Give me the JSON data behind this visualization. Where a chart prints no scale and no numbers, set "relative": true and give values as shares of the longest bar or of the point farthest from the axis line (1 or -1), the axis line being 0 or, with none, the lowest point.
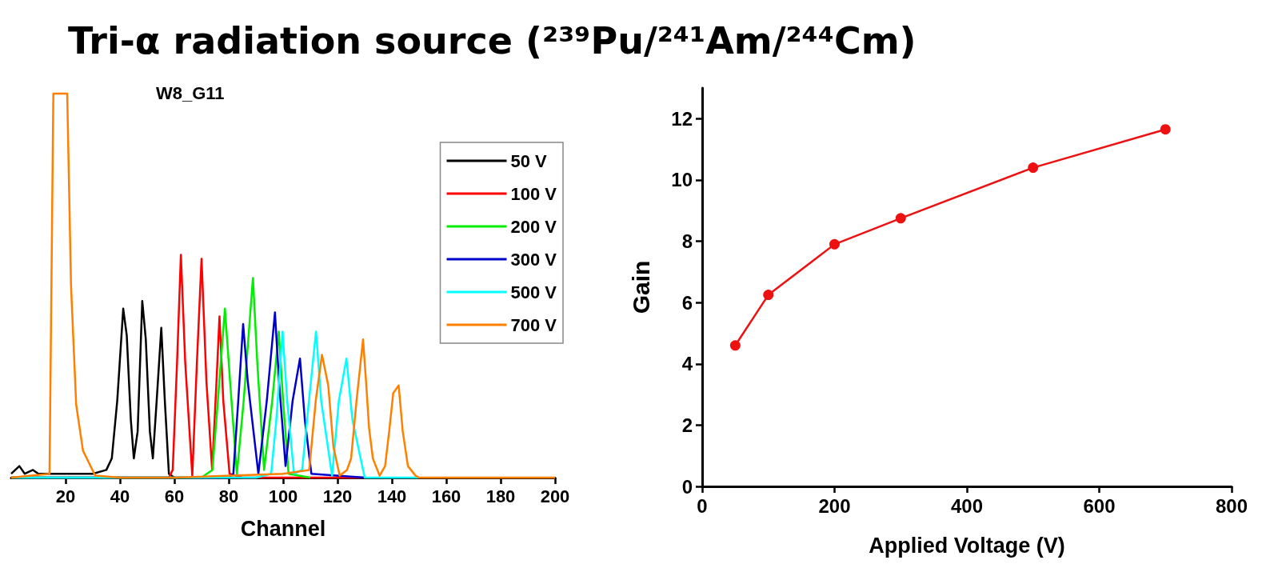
{
  "chart_data": [
    {
      "type": "line",
      "title": "Tri-α radiation source (²³⁹Pu/²⁴¹Am/²⁴⁴Cm)",
      "subtitle": "W8_G11",
      "xlabel": "Channel",
      "relative": true,
      "xlim": [
        0,
        200
      ],
      "xticks": [
        20,
        40,
        60,
        80,
        100,
        120,
        140,
        160,
        180,
        200
      ],
      "legend": "top right",
      "marker": "none",
      "series": [
        {
          "name": "50 V",
          "color": "#000000",
          "x": [
            0,
            3,
            5,
            8,
            10,
            15,
            20,
            25,
            30,
            35,
            37,
            39,
            41.2,
            42.5,
            44,
            45.1,
            46.5,
            48.2,
            49.5,
            51,
            52.1,
            53.5,
            55.2,
            56.5,
            58,
            60
          ],
          "values": [
            0.01,
            0.03,
            0.01,
            0.02,
            0.01,
            0.01,
            0.01,
            0.01,
            0.01,
            0.02,
            0.05,
            0.2,
            0.44,
            0.37,
            0.15,
            0.05,
            0.12,
            0.46,
            0.36,
            0.12,
            0.05,
            0.2,
            0.39,
            0.2,
            0.01,
            0
          ]
        },
        {
          "name": "100 V",
          "color": "#ff0000",
          "x": [
            0,
            58,
            59.4,
            61,
            62.4,
            64,
            66.6,
            68.3,
            70,
            71.8,
            73.9,
            75.5,
            76.6,
            78,
            80.3,
            85,
            130
          ],
          "values": [
            0,
            0,
            0.02,
            0.3,
            0.58,
            0.3,
            0.005,
            0.3,
            0.57,
            0.25,
            0.02,
            0.25,
            0.42,
            0.2,
            0.01,
            0,
            0
          ]
        },
        {
          "name": "200 V",
          "color": "#00ee00",
          "x": [
            0,
            70,
            74,
            76,
            78.6,
            80.5,
            83,
            85.5,
            88.9,
            90.5,
            93,
            96,
            98.4,
            100,
            102,
            110
          ],
          "values": [
            0,
            0,
            0.02,
            0.2,
            0.44,
            0.25,
            0.01,
            0.2,
            0.52,
            0.3,
            0.02,
            0.2,
            0.38,
            0.2,
            0.01,
            0
          ]
        },
        {
          "name": "300 V",
          "color": "#0000cc",
          "x": [
            0,
            80,
            81.7,
            83.5,
            85.3,
            87,
            90.9,
            94,
            97,
            98.5,
            100.9,
            103.5,
            106.2,
            108,
            110.4,
            130
          ],
          "values": [
            0,
            0,
            0.01,
            0.2,
            0.4,
            0.25,
            0.01,
            0.2,
            0.43,
            0.25,
            0.03,
            0.2,
            0.31,
            0.15,
            0.01,
            0
          ]
        },
        {
          "name": "500 V",
          "color": "#00ffff",
          "x": [
            0,
            90,
            95.6,
            97.5,
            99.8,
            101.5,
            104,
            107,
            109.5,
            112.1,
            114,
            118,
            120.5,
            123.3,
            125.5,
            130,
            150
          ],
          "values": [
            0,
            0,
            0.01,
            0.15,
            0.38,
            0.2,
            0.01,
            0.02,
            0.2,
            0.38,
            0.2,
            0.005,
            0.2,
            0.31,
            0.15,
            0,
            0
          ]
        },
        {
          "name": "700 V",
          "color": "#ff8000",
          "x": [
            0,
            14.1,
            15.5,
            20.6,
            22,
            23.9,
            26.4,
            27.8,
            30.9,
            40,
            60,
            100,
            109.6,
            112,
            114.3,
            116.6,
            118.5,
            120.8,
            123.5,
            125,
            127,
            129.4,
            130.5,
            131.6,
            133,
            135.5,
            137.5,
            139,
            140.5,
            142.5,
            144,
            145.9,
            148.7,
            150,
            200
          ],
          "values": [
            0,
            0.01,
            1,
            1,
            0.5,
            0.19,
            0.07,
            0.05,
            0.005,
            0,
            0,
            0.01,
            0.02,
            0.2,
            0.32,
            0.24,
            0.08,
            0.005,
            0.02,
            0.05,
            0.2,
            0.36,
            0.25,
            0.13,
            0.05,
            0.005,
            0.03,
            0.12,
            0.22,
            0.24,
            0.12,
            0.03,
            0.005,
            0,
            0
          ]
        }
      ]
    },
    {
      "type": "line",
      "xlabel": "Applied Voltage (V)",
      "ylabel": "Gain",
      "x": [
        50,
        100,
        200,
        300,
        500,
        700
      ],
      "xlim": [
        0,
        800
      ],
      "xticks": [
        0,
        200,
        400,
        600,
        800
      ],
      "ylim": [
        0,
        13
      ],
      "yticks": [
        0,
        2,
        4,
        6,
        8,
        10,
        12
      ],
      "marker": "circle",
      "series": [
        {
          "color": "#ee1111",
          "values": [
            4.6,
            6.25,
            7.9,
            8.75,
            10.4,
            11.65
          ]
        }
      ]
    }
  ]
}
